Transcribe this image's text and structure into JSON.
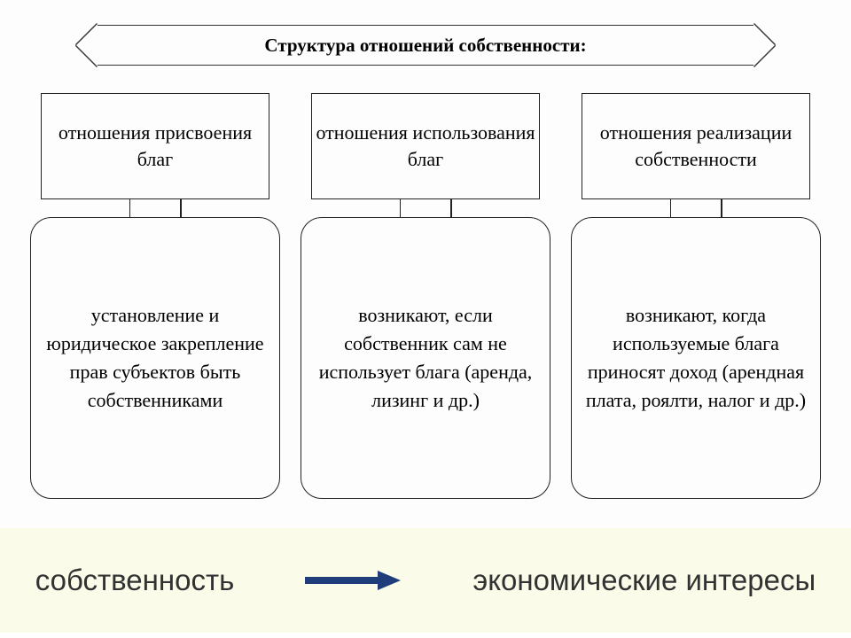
{
  "type": "flowchart",
  "background_color": "#fefefe",
  "diagram_bg": "#fdfdfd",
  "border_color": "#222222",
  "text_color": "#000000",
  "title": "Структура отношений собственности:",
  "title_fontsize": 21,
  "title_fontweight": "bold",
  "box_fontsize": 22,
  "col1": {
    "header": "отношения присвоения благ",
    "detail": "установление и юридическое закрепление прав субъектов быть собственниками"
  },
  "col2": {
    "header": "отношения использования благ",
    "detail": "возникают, если собственник сам не использует блага (аренда, лизинг и др.)"
  },
  "col3": {
    "header": "отношения реализации собственности",
    "detail": "возникают, когда используемые блага приносят доход (арендная плата, роялти, налог и др.)"
  },
  "bottom_band": {
    "background_color": "#fafce9",
    "left_text": "собственность",
    "right_text": "экономические интересы",
    "arrow_color": "#1f3d7a",
    "fontsize": 33,
    "text_color": "#323232"
  }
}
